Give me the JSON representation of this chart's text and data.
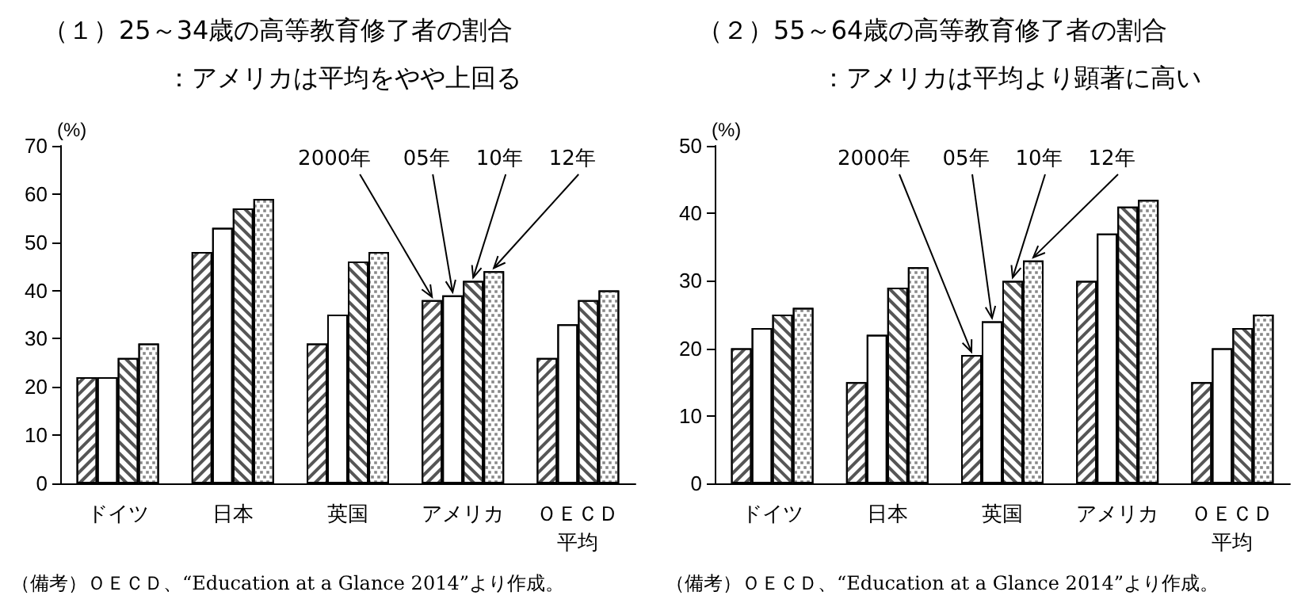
{
  "chart_data": [
    {
      "type": "bar",
      "title": "（１）25～34歳の高等教育修了者の割合",
      "subtitle": "：アメリカは平均をやや上回る",
      "ylabel": "(%)",
      "categories": [
        "ドイツ",
        "日本",
        "英国",
        "アメリカ",
        "ＯＥＣＤ平均"
      ],
      "series": [
        {
          "name": "2000年",
          "color": "#ffffff",
          "values": [
            22,
            48,
            29,
            38,
            26
          ]
        },
        {
          "name": "05年",
          "color": "#ffffff",
          "values": [
            22,
            53,
            35,
            39,
            33
          ]
        },
        {
          "name": "10年",
          "color": "#ffffff",
          "values": [
            26,
            57,
            46,
            42,
            38
          ]
        },
        {
          "name": "12年",
          "color": "#ffffff",
          "values": [
            29,
            59,
            48,
            44,
            40
          ]
        }
      ],
      "ylim": [
        0,
        70
      ],
      "yticks": [
        0,
        10,
        20,
        30,
        40,
        50,
        60,
        70
      ],
      "grid": false,
      "legend": false,
      "annotations": [
        "（備考）ＯＥＣＤ、“Education at a Glance 2014”より作成。"
      ]
    },
    {
      "type": "bar",
      "title": "（２）55～64歳の高等教育修了者の割合",
      "subtitle": "：アメリカは平均より顕著に高い",
      "ylabel": "(%)",
      "categories": [
        "ドイツ",
        "日本",
        "英国",
        "アメリカ",
        "ＯＥＣＤ平均"
      ],
      "series": [
        {
          "name": "2000年",
          "color": "#ffffff",
          "values": [
            20,
            15,
            19,
            30,
            15
          ]
        },
        {
          "name": "05年",
          "color": "#ffffff",
          "values": [
            23,
            22,
            24,
            37,
            20
          ]
        },
        {
          "name": "10年",
          "color": "#ffffff",
          "values": [
            25,
            29,
            30,
            41,
            23
          ]
        },
        {
          "name": "12年",
          "color": "#ffffff",
          "values": [
            26,
            32,
            33,
            42,
            25
          ]
        }
      ],
      "ylim": [
        0,
        50
      ],
      "yticks": [
        0,
        10,
        20,
        30,
        40,
        50
      ],
      "grid": false,
      "legend": false,
      "annotations": [
        "（備考）ＯＥＣＤ、“Education at a Glance 2014”より作成。"
      ]
    }
  ]
}
